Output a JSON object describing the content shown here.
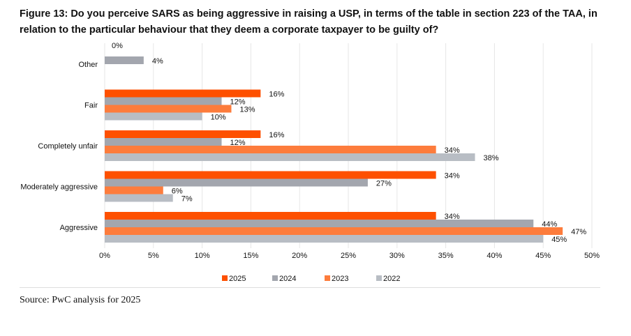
{
  "title": "Figure 13: Do you perceive SARS as being aggressive in raising a USP, in terms of the table in section 223 of the TAA, in relation to the particular behaviour that they deem a corporate taxpayer to be guilty of?",
  "source": "Source: PwC analysis for 2025",
  "chart_data": {
    "type": "bar",
    "orientation": "horizontal",
    "categories": [
      "Other",
      "Fair",
      "Completely unfair",
      "Moderately aggressive",
      "Aggressive"
    ],
    "series": [
      {
        "name": "2025",
        "color": "#fe5000",
        "values": [
          0,
          16,
          16,
          34,
          34
        ]
      },
      {
        "name": "2024",
        "color": "#a3a6ae",
        "values": [
          4,
          12,
          12,
          27,
          44
        ]
      },
      {
        "name": "2023",
        "color": "#fd7c3c",
        "values": [
          null,
          13,
          34,
          6,
          47
        ]
      },
      {
        "name": "2022",
        "color": "#b8bdc4",
        "values": [
          null,
          10,
          38,
          7,
          45
        ]
      }
    ],
    "xlim": [
      0,
      50
    ],
    "xticks": [
      "0%",
      "5%",
      "10%",
      "15%",
      "20%",
      "25%",
      "30%",
      "35%",
      "40%",
      "45%",
      "50%"
    ],
    "grid": true,
    "legend_position": "bottom",
    "value_suffix": "%"
  }
}
